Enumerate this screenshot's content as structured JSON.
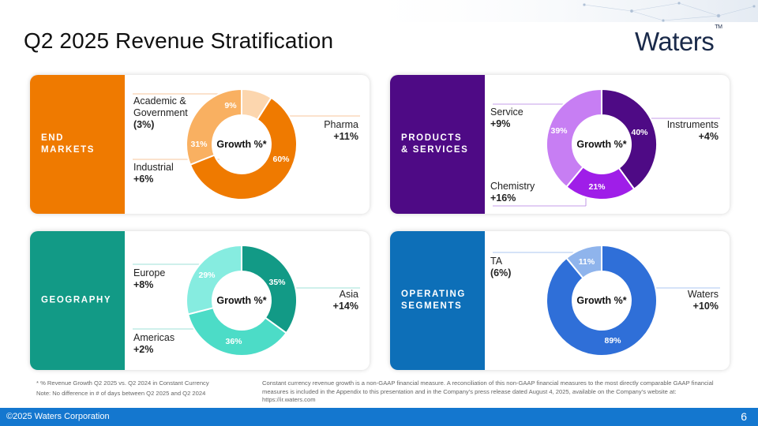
{
  "title": "Q2 2025 Revenue Stratification",
  "logo": {
    "text": "Waters",
    "tm": "TM"
  },
  "center_label": "Growth %*",
  "panels": {
    "end_markets": {
      "band_label": "END\nMARKETS",
      "band_color": "#ef7a00",
      "segments": [
        {
          "name": "Academic &\nGovernment",
          "growth": "(3%)",
          "pct_label": "9%"
        },
        {
          "name": "Pharma",
          "growth": "+11%",
          "pct_label": "60%"
        },
        {
          "name": "Industrial",
          "growth": "+6%",
          "pct_label": "31%"
        }
      ]
    },
    "products_services": {
      "band_label": "PRODUCTS\n& SERVICES",
      "band_color": "#4e0a85",
      "segments": [
        {
          "name": "Service",
          "growth": "+9%",
          "pct_label": "39%"
        },
        {
          "name": "Instruments",
          "growth": "+4%",
          "pct_label": "40%"
        },
        {
          "name": "Chemistry",
          "growth": "+16%",
          "pct_label": "21%"
        }
      ]
    },
    "geography": {
      "band_label": "GEOGRAPHY",
      "band_color": "#129a86",
      "segments": [
        {
          "name": "Europe",
          "growth": "+8%",
          "pct_label": "29%"
        },
        {
          "name": "Asia",
          "growth": "+14%",
          "pct_label": "35%"
        },
        {
          "name": "Americas",
          "growth": "+2%",
          "pct_label": "36%"
        }
      ]
    },
    "operating_segments": {
      "band_label": "OPERATING\nSEGMENTS",
      "band_color": "#0d6fb8",
      "segments": [
        {
          "name": "TA",
          "growth": "(6%)",
          "pct_label": "11%"
        },
        {
          "name": "Waters",
          "growth": "+10%",
          "pct_label": "89%"
        }
      ]
    }
  },
  "chart_data": [
    {
      "type": "pie",
      "title": "END MARKETS",
      "center_label": "Growth %*",
      "categories": [
        "Academic & Government",
        "Pharma",
        "Industrial"
      ],
      "values": [
        9,
        60,
        31
      ],
      "growth": [
        "(3%)",
        "+11%",
        "+6%"
      ],
      "colors": [
        "#fcd6ae",
        "#ef7a00",
        "#f9b061"
      ]
    },
    {
      "type": "pie",
      "title": "PRODUCTS & SERVICES",
      "center_label": "Growth %*",
      "categories": [
        "Instruments",
        "Chemistry",
        "Service"
      ],
      "values": [
        40,
        21,
        39
      ],
      "growth": [
        "+4%",
        "+16%",
        "+9%"
      ],
      "colors": [
        "#4e0a85",
        "#9f1ee8",
        "#c77ef3"
      ]
    },
    {
      "type": "pie",
      "title": "GEOGRAPHY",
      "center_label": "Growth %*",
      "categories": [
        "Asia",
        "Americas",
        "Europe"
      ],
      "values": [
        35,
        36,
        29
      ],
      "growth": [
        "+14%",
        "+2%",
        "+8%"
      ],
      "colors": [
        "#129a86",
        "#4cdcc7",
        "#86ece0"
      ]
    },
    {
      "type": "pie",
      "title": "OPERATING SEGMENTS",
      "center_label": "Growth %*",
      "categories": [
        "Waters",
        "TA"
      ],
      "values": [
        89,
        11
      ],
      "growth": [
        "+10%",
        "(6%)"
      ],
      "colors": [
        "#2f6fd8",
        "#8fb4ec"
      ]
    }
  ],
  "footnotes": {
    "left_1": "* % Revenue Growth Q2 2025 vs. Q2 2024 in Constant Currency",
    "left_2": "Note: No difference in # of days between Q2 2025 and Q2 2024",
    "right": "Constant currency revenue growth is a non-GAAP financial measure. A reconciliation of this non-GAAP financial measures to the most directly comparable GAAP financial measures is included in the Appendix to this presentation and in the Company’s press release dated August 4, 2025, available on the Company’s website at: https://ir.waters.com"
  },
  "footer": {
    "copyright": "©2025 Waters Corporation",
    "page": "6"
  }
}
